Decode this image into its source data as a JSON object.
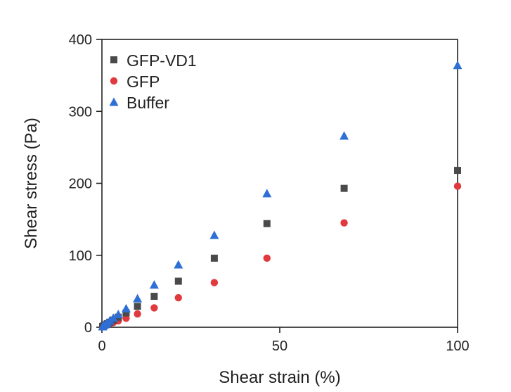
{
  "chart_data": {
    "type": "scatter",
    "xlabel": "Shear strain (%)",
    "ylabel": "Shear stress (Pa)",
    "xlim": [
      0,
      100
    ],
    "ylim": [
      0,
      400
    ],
    "xticks": [
      0,
      50,
      100
    ],
    "yticks": [
      0,
      100,
      200,
      300,
      400
    ],
    "grid": false,
    "legend_position": "top-left",
    "series": [
      {
        "name": "GFP-VD1",
        "marker": "square",
        "color": "#4a4a4a",
        "x": [
          0.2,
          0.5,
          1,
          1.5,
          2.2,
          3.2,
          4.6,
          6.8,
          10,
          14.7,
          21.5,
          31.6,
          46.4,
          68.1,
          100
        ],
        "y": [
          1,
          2,
          3.5,
          5,
          7,
          10,
          14,
          20,
          29,
          43,
          64,
          96,
          144,
          193,
          218
        ]
      },
      {
        "name": "GFP",
        "marker": "circle",
        "color": "#e0393e",
        "x": [
          0.2,
          0.5,
          1,
          1.5,
          2.2,
          3.2,
          4.6,
          6.8,
          10,
          14.7,
          21.5,
          31.6,
          46.4,
          68.1,
          100
        ],
        "y": [
          1,
          1.5,
          2.5,
          3.5,
          5,
          6.5,
          9,
          12.5,
          18.5,
          27,
          41,
          62,
          96,
          145,
          196
        ]
      },
      {
        "name": "Buffer",
        "marker": "triangle",
        "color": "#2e6fd6",
        "x": [
          0.2,
          0.5,
          1,
          1.5,
          2.2,
          3.2,
          4.6,
          6.8,
          10,
          14.7,
          21.5,
          31.6,
          46.4,
          68.1,
          100
        ],
        "y": [
          1,
          2.5,
          4,
          6,
          9,
          13,
          18,
          26,
          40,
          59,
          87,
          128,
          186,
          266,
          364
        ]
      }
    ]
  }
}
